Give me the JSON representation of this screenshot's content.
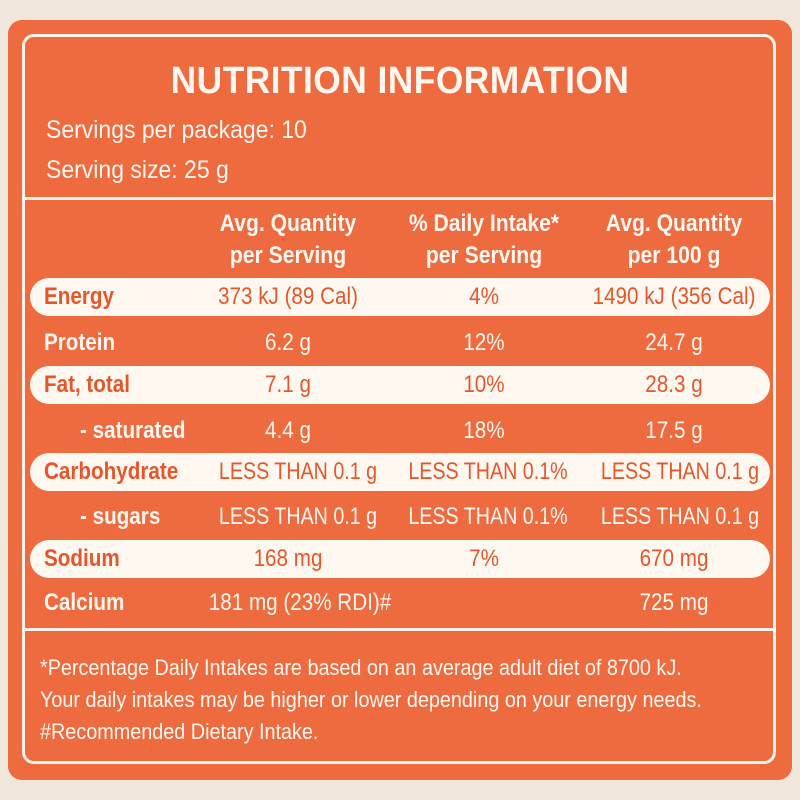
{
  "title": "NUTRITION INFORMATION",
  "servings_per_package": "Servings per package: 10",
  "serving_size": "Serving size: 25 g",
  "headers": {
    "col1_line1": "Avg. Quantity",
    "col1_line2": "per Serving",
    "col2_line1": "% Daily Intake*",
    "col2_line2": "per Serving",
    "col3_line1": "Avg. Quantity",
    "col3_line2": "per 100 g"
  },
  "rows": [
    {
      "label": "Energy",
      "per_serving": "373 kJ (89 Cal)",
      "daily_intake": "4%",
      "per_100g": "1490 kJ (356 Cal)"
    },
    {
      "label": "Protein",
      "per_serving": "6.2 g",
      "daily_intake": "12%",
      "per_100g": "24.7 g"
    },
    {
      "label": "Fat, total",
      "per_serving": "7.1 g",
      "daily_intake": "10%",
      "per_100g": "28.3 g"
    },
    {
      "label": "- saturated",
      "per_serving": "4.4 g",
      "daily_intake": "18%",
      "per_100g": "17.5 g"
    },
    {
      "label": "Carbohydrate",
      "per_serving": "LESS THAN 0.1 g",
      "daily_intake": "LESS THAN 0.1%",
      "per_100g": "LESS THAN 0.1 g"
    },
    {
      "label": "- sugars",
      "per_serving": "LESS THAN 0.1 g",
      "daily_intake": "LESS THAN 0.1%",
      "per_100g": "LESS THAN 0.1 g"
    },
    {
      "label": "Sodium",
      "per_serving": "168 mg",
      "daily_intake": "7%",
      "per_100g": "670 mg"
    },
    {
      "label": "Calcium",
      "per_serving": "181 mg (23% RDI)#",
      "daily_intake": "",
      "per_100g": "725 mg"
    }
  ],
  "footnotes": {
    "line1": "*Percentage Daily Intakes are based on an average adult diet of 8700 kJ.",
    "line2": "Your daily intakes may be higher or lower depending on your energy needs.",
    "line3": "#Recommended Dietary Intake."
  },
  "colors": {
    "panel": "#ee6a3f",
    "band": "#fff8f1",
    "band_text": "#e4572b",
    "text": "#fff7ef"
  }
}
